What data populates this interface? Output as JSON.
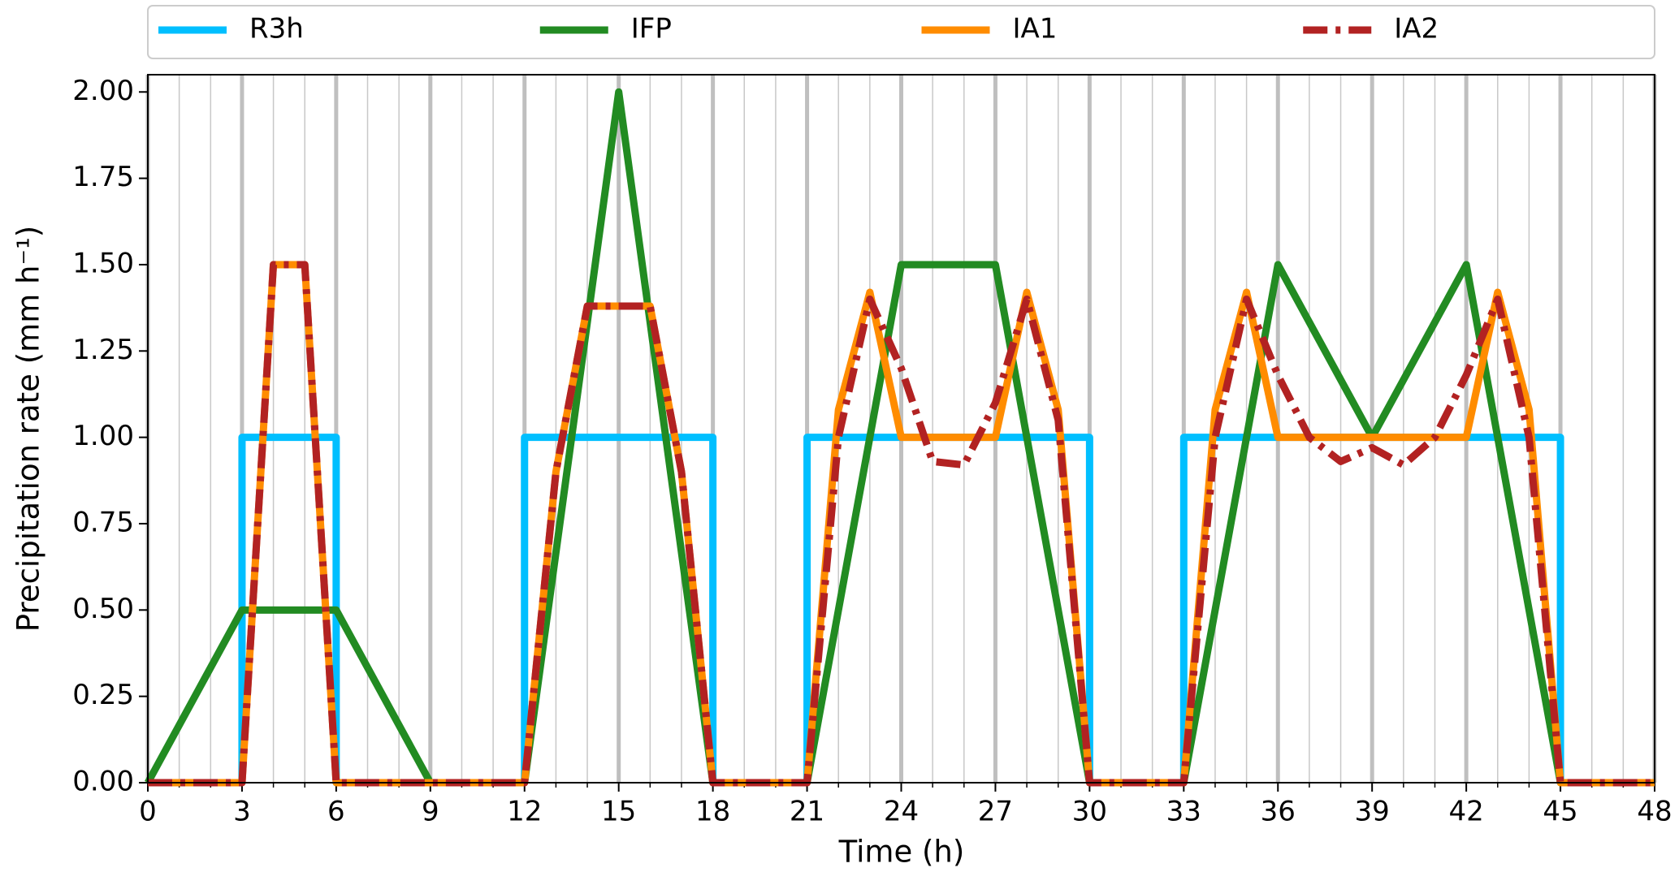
{
  "chart_data": {
    "type": "line",
    "xlabel": "Time (h)",
    "ylabel": "Precipitation rate (mm h⁻¹)",
    "xlim": [
      0,
      48
    ],
    "ylim": [
      0,
      2.05
    ],
    "xticks": [
      0,
      3,
      6,
      9,
      12,
      15,
      18,
      21,
      24,
      27,
      30,
      33,
      36,
      39,
      42,
      45,
      48
    ],
    "xminorticks": [
      0,
      1,
      2,
      3,
      4,
      5,
      6,
      7,
      8,
      9,
      10,
      11,
      12,
      13,
      14,
      15,
      16,
      17,
      18,
      19,
      20,
      21,
      22,
      23,
      24,
      25,
      26,
      27,
      28,
      29,
      30,
      31,
      32,
      33,
      34,
      35,
      36,
      37,
      38,
      39,
      40,
      41,
      42,
      43,
      44,
      45,
      46,
      47,
      48
    ],
    "yticks": [
      {
        "value": 0,
        "label": "0.00"
      },
      {
        "value": 0.25,
        "label": "0.25"
      },
      {
        "value": 0.5,
        "label": "0.50"
      },
      {
        "value": 0.75,
        "label": "0.75"
      },
      {
        "value": 1,
        "label": "1.00"
      },
      {
        "value": 1.25,
        "label": "1.25"
      },
      {
        "value": 1.5,
        "label": "1.50"
      },
      {
        "value": 1.75,
        "label": "1.75"
      },
      {
        "value": 2,
        "label": "2.00"
      }
    ],
    "grid": true,
    "legend": "top",
    "series": [
      {
        "name": "R3h",
        "color": "#00bfff",
        "style": "solid",
        "x": [
          0,
          3,
          3,
          6,
          6,
          12,
          12,
          18,
          18,
          21,
          21,
          30,
          30,
          33,
          33,
          45,
          45,
          48
        ],
        "values": [
          0,
          0,
          1,
          1,
          0,
          0,
          1,
          1,
          0,
          0,
          1,
          1,
          0,
          0,
          1,
          1,
          0,
          0
        ]
      },
      {
        "name": "IFP",
        "color": "#228b22",
        "style": "solid",
        "x": [
          0,
          3,
          6,
          9,
          12,
          15,
          18,
          21,
          24,
          27,
          30,
          33,
          36,
          39,
          42,
          45,
          48
        ],
        "values": [
          0,
          0.5,
          0.5,
          0,
          0,
          2,
          0,
          0,
          1.5,
          1.5,
          0,
          0,
          1.5,
          1,
          1.5,
          0,
          0
        ]
      },
      {
        "name": "IA1",
        "color": "#ff8c00",
        "style": "solid",
        "x": [
          0,
          1,
          2,
          3,
          4,
          5,
          6,
          7,
          8,
          9,
          10,
          11,
          12,
          13,
          14,
          15,
          16,
          17,
          18,
          19,
          20,
          21,
          22,
          23,
          24,
          25,
          26,
          27,
          28,
          29,
          30,
          31,
          32,
          33,
          34,
          35,
          36,
          37,
          38,
          39,
          40,
          41,
          42,
          43,
          44,
          45,
          46,
          47,
          48
        ],
        "values": [
          0,
          0,
          0,
          0,
          1.5,
          1.5,
          0,
          0,
          0,
          0,
          0,
          0,
          0,
          0.9,
          1.38,
          1.38,
          1.38,
          0.9,
          0,
          0,
          0,
          0,
          1.08,
          1.42,
          1,
          1,
          1,
          1,
          1.42,
          1.08,
          0,
          0,
          0,
          0,
          1.08,
          1.42,
          1,
          1,
          1,
          1,
          1,
          1,
          1,
          1.42,
          1.08,
          0,
          0,
          0,
          0
        ]
      },
      {
        "name": "IA2",
        "color": "#b22222",
        "style": "dashdot",
        "x": [
          0,
          1,
          2,
          3,
          4,
          5,
          6,
          7,
          8,
          9,
          10,
          11,
          12,
          13,
          14,
          15,
          16,
          17,
          18,
          19,
          20,
          21,
          22,
          23,
          24,
          25,
          26,
          27,
          28,
          29,
          30,
          31,
          32,
          33,
          34,
          35,
          36,
          37,
          38,
          39,
          40,
          41,
          42,
          43,
          44,
          45,
          46,
          47,
          48
        ],
        "values": [
          0,
          0,
          0,
          0,
          1.5,
          1.5,
          0,
          0,
          0,
          0,
          0,
          0,
          0,
          0.9,
          1.38,
          1.38,
          1.38,
          0.9,
          0,
          0,
          0,
          0,
          1,
          1.4,
          1.2,
          0.93,
          0.92,
          1.1,
          1.4,
          1.05,
          0,
          0,
          0,
          0,
          1,
          1.4,
          1.18,
          1,
          0.93,
          0.97,
          0.92,
          1,
          1.18,
          1.4,
          1,
          0,
          0,
          0,
          0
        ]
      }
    ]
  }
}
